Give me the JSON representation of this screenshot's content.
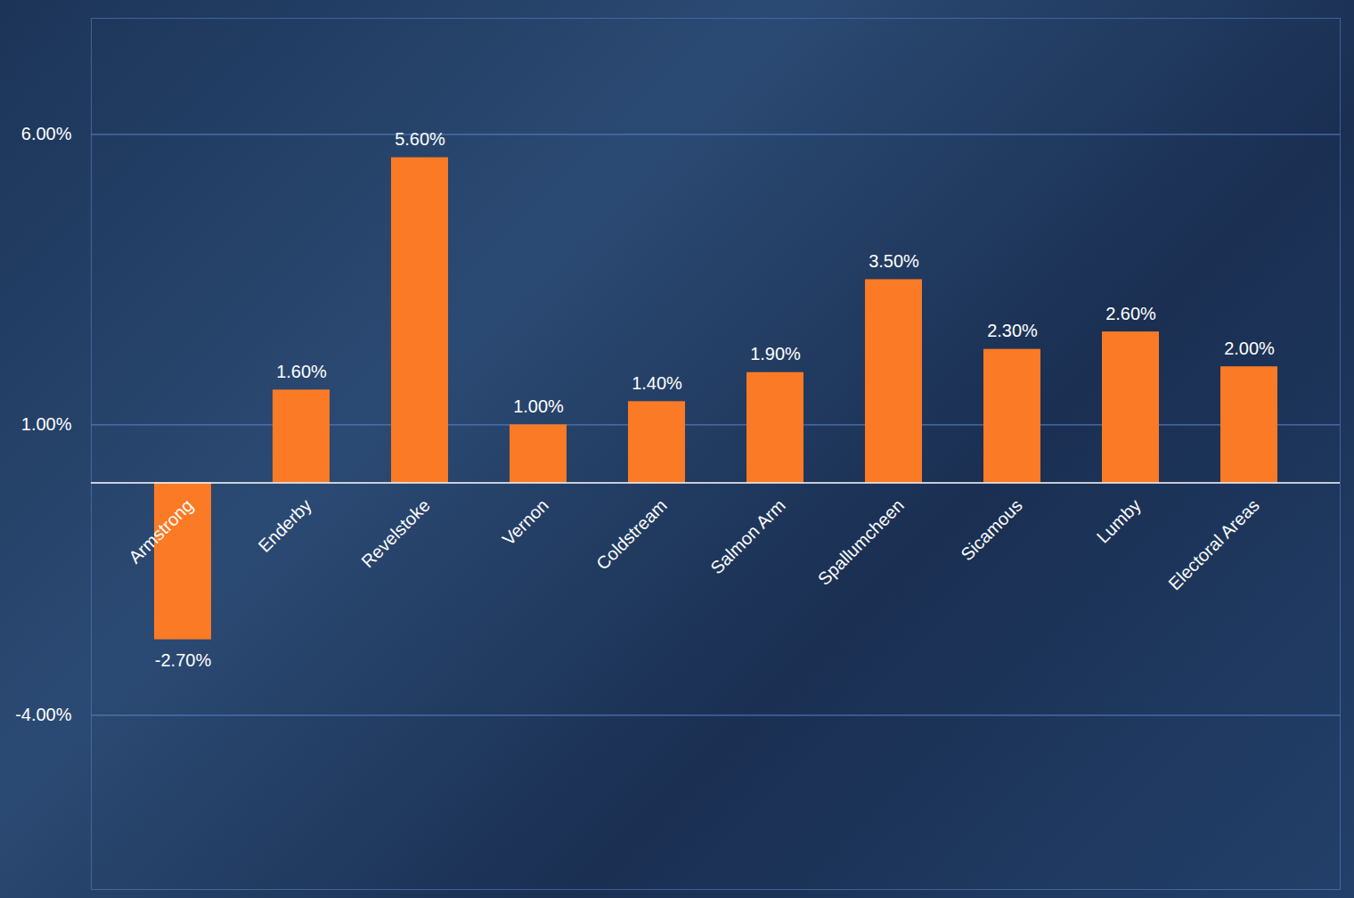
{
  "chart_data": {
    "type": "bar",
    "categories": [
      "Armstrong",
      "Enderby",
      "Revelstoke",
      "Vernon",
      "Coldstream",
      "Salmon Arm",
      "Spallumcheen",
      "Sicamous",
      "Lumby",
      "Electoral Areas"
    ],
    "values": [
      -2.7,
      1.6,
      5.6,
      1.0,
      1.4,
      1.9,
      3.5,
      2.3,
      2.6,
      2.0
    ],
    "value_labels": [
      "-2.70%",
      "1.60%",
      "5.60%",
      "1.00%",
      "1.40%",
      "1.90%",
      "3.50%",
      "2.30%",
      "2.60%",
      "2.00%"
    ],
    "color": "#fa7a25",
    "ylim": [
      -7,
      8
    ],
    "yticks": [
      {
        "value": -4,
        "label": "-4.00%"
      },
      {
        "value": 1,
        "label": "1.00%"
      },
      {
        "value": 6,
        "label": "6.00%"
      }
    ],
    "grid": true,
    "data_labels": true
  }
}
